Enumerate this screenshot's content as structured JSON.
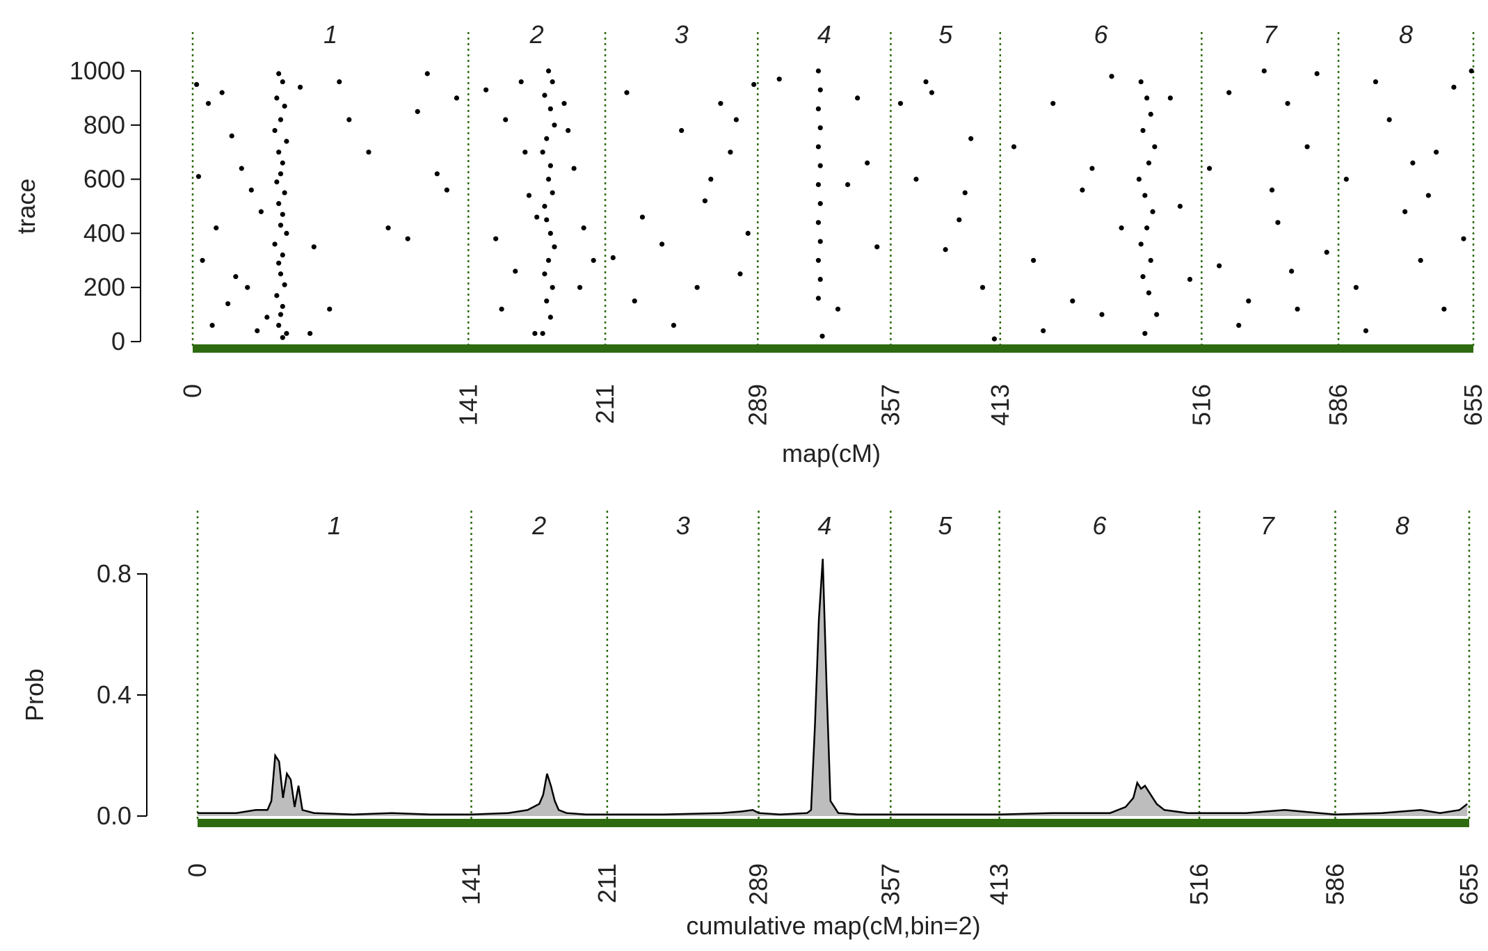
{
  "chart_data": [
    {
      "type": "scatter",
      "y_label": "trace",
      "x_label": "map(cM)",
      "color": "#000000",
      "boundary_color": "#2e6b10",
      "xlim": [
        0,
        655
      ],
      "ylim": [
        0,
        1000
      ],
      "xticks": [
        0,
        141,
        211,
        289,
        357,
        413,
        516,
        586,
        655
      ],
      "yticks": [
        0,
        200,
        400,
        600,
        800,
        1000
      ],
      "chromosomes": [
        "1",
        "2",
        "3",
        "4",
        "5",
        "6",
        "7",
        "8"
      ],
      "x": [
        44,
        46,
        43,
        47,
        45,
        42,
        48,
        44,
        46,
        45,
        43,
        47,
        44,
        46,
        45,
        48,
        42,
        46,
        44,
        45,
        47,
        43,
        46,
        45,
        44,
        48,
        46,
        2,
        8,
        15,
        20,
        25,
        30,
        35,
        12,
        5,
        28,
        18,
        38,
        55,
        62,
        70,
        80,
        90,
        100,
        110,
        115,
        120,
        125,
        130,
        135,
        10,
        22,
        33,
        3,
        60,
        75,
        182,
        184,
        180,
        183,
        185,
        181,
        179,
        183,
        182,
        184,
        180,
        181,
        183,
        185,
        182,
        180,
        184,
        181,
        183,
        179,
        150,
        155,
        160,
        165,
        170,
        172,
        175,
        190,
        195,
        200,
        205,
        158,
        168,
        176,
        192,
        198,
        215,
        222,
        230,
        240,
        250,
        258,
        265,
        270,
        275,
        280,
        284,
        287,
        226,
        246,
        262,
        278,
        320,
        321,
        320,
        321,
        320,
        321,
        320,
        321,
        320,
        321,
        320,
        321,
        320,
        322,
        300,
        335,
        340,
        350,
        330,
        345,
        362,
        370,
        378,
        385,
        392,
        398,
        404,
        410,
        375,
        395,
        485,
        488,
        490,
        486,
        492,
        489,
        484,
        487,
        491,
        488,
        485,
        490,
        486,
        489,
        493,
        487,
        420,
        430,
        440,
        450,
        460,
        470,
        475,
        500,
        505,
        510,
        435,
        455,
        465,
        520,
        525,
        530,
        540,
        548,
        555,
        560,
        565,
        570,
        575,
        580,
        535,
        552,
        562,
        590,
        595,
        605,
        612,
        620,
        628,
        632,
        636,
        640,
        645,
        650,
        654,
        600,
        624
      ],
      "values": [
        990,
        960,
        900,
        870,
        820,
        780,
        740,
        700,
        660,
        620,
        590,
        550,
        510,
        470,
        430,
        400,
        360,
        320,
        290,
        250,
        210,
        170,
        130,
        100,
        60,
        30,
        15,
        950,
        880,
        920,
        760,
        640,
        560,
        480,
        420,
        300,
        200,
        140,
        90,
        940,
        350,
        120,
        820,
        700,
        420,
        380,
        850,
        990,
        620,
        560,
        900,
        60,
        240,
        40,
        610,
        30,
        960,
        1000,
        960,
        910,
        860,
        800,
        750,
        700,
        650,
        600,
        550,
        500,
        450,
        400,
        350,
        300,
        250,
        200,
        150,
        90,
        30,
        930,
        380,
        820,
        260,
        700,
        540,
        30,
        880,
        640,
        420,
        300,
        120,
        960,
        460,
        780,
        200,
        310,
        920,
        460,
        360,
        780,
        200,
        600,
        880,
        700,
        250,
        400,
        950,
        150,
        60,
        520,
        820,
        1000,
        930,
        860,
        790,
        720,
        650,
        580,
        510,
        440,
        370,
        300,
        230,
        160,
        20,
        970,
        580,
        900,
        350,
        120,
        660,
        880,
        600,
        920,
        340,
        450,
        750,
        200,
        10,
        960,
        550,
        960,
        900,
        840,
        780,
        720,
        660,
        600,
        540,
        480,
        420,
        360,
        300,
        240,
        180,
        100,
        30,
        720,
        300,
        880,
        150,
        640,
        980,
        420,
        900,
        500,
        230,
        40,
        560,
        100,
        640,
        280,
        920,
        150,
        1000,
        440,
        880,
        120,
        720,
        990,
        330,
        60,
        560,
        260,
        600,
        200,
        960,
        820,
        480,
        300,
        540,
        700,
        120,
        940,
        380,
        1000,
        40,
        660
      ]
    },
    {
      "type": "area",
      "y_label": "Prob",
      "x_label": "cumulative map(cM,bin=2)",
      "color": "#000000",
      "fill": "#bdbdbd",
      "boundary_color": "#2e6b10",
      "xlim": [
        0,
        655
      ],
      "ylim": [
        0,
        0.8
      ],
      "xticks": [
        0,
        141,
        211,
        289,
        357,
        413,
        516,
        586,
        655
      ],
      "yticks": [
        {
          "value": 0,
          "label": "0.0"
        },
        0.4,
        0.8
      ],
      "chromosomes": [
        "1",
        "2",
        "3",
        "4",
        "5",
        "6",
        "7",
        "8"
      ],
      "x": [
        0,
        10,
        20,
        30,
        36,
        38,
        40,
        42,
        44,
        46,
        48,
        50,
        52,
        54,
        60,
        80,
        100,
        120,
        141,
        160,
        170,
        176,
        178,
        180,
        182,
        184,
        186,
        190,
        200,
        211,
        240,
        270,
        280,
        286,
        289,
        300,
        314,
        316,
        318,
        320,
        322,
        324,
        326,
        330,
        340,
        357,
        380,
        400,
        413,
        440,
        470,
        478,
        482,
        484,
        486,
        488,
        490,
        492,
        494,
        498,
        510,
        516,
        540,
        560,
        586,
        610,
        630,
        640,
        650,
        654
      ],
      "values": [
        0.01,
        0.01,
        0.01,
        0.02,
        0.02,
        0.05,
        0.2,
        0.18,
        0.06,
        0.14,
        0.12,
        0.03,
        0.1,
        0.02,
        0.01,
        0.005,
        0.01,
        0.005,
        0.005,
        0.01,
        0.02,
        0.04,
        0.07,
        0.14,
        0.1,
        0.05,
        0.02,
        0.01,
        0.005,
        0.005,
        0.005,
        0.01,
        0.015,
        0.02,
        0.01,
        0.005,
        0.01,
        0.02,
        0.3,
        0.65,
        0.85,
        0.43,
        0.05,
        0.01,
        0.005,
        0.005,
        0.005,
        0.005,
        0.005,
        0.01,
        0.01,
        0.03,
        0.06,
        0.11,
        0.09,
        0.1,
        0.08,
        0.06,
        0.04,
        0.02,
        0.01,
        0.01,
        0.01,
        0.02,
        0.005,
        0.01,
        0.02,
        0.01,
        0.02,
        0.04
      ]
    }
  ]
}
